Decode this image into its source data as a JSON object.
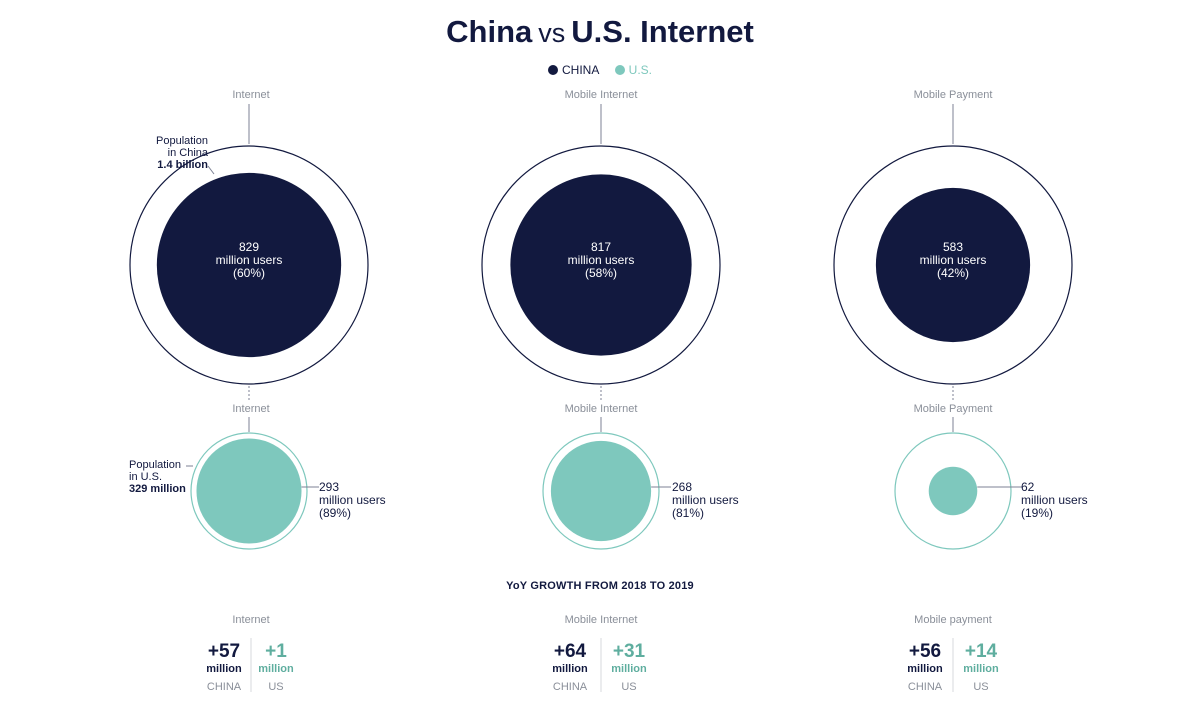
{
  "title": {
    "main_left": "China",
    "vs": "vs",
    "main_right": "U.S. Internet"
  },
  "legend": [
    {
      "label": "CHINA",
      "color": "#12193f"
    },
    {
      "label": "U.S.",
      "color": "#7ec8bd"
    }
  ],
  "colors": {
    "china": "#12193f",
    "us": "#7ec8bd",
    "ring_us": "#7ec8bd",
    "ring_china": "#12193f"
  },
  "chart_data": {
    "type": "bubble-comparison",
    "china": {
      "population_label": [
        "Population",
        "in China"
      ],
      "population_value": "1.4 billion",
      "categories": [
        {
          "name": "Internet",
          "value": "829",
          "unit": "million users",
          "pct": "(60%)",
          "share": 0.6
        },
        {
          "name": "Mobile Internet",
          "value": "817",
          "unit": "million users",
          "pct": "(58%)",
          "share": 0.58
        },
        {
          "name": "Mobile Payment",
          "value": "583",
          "unit": "million users",
          "pct": "(42%)",
          "share": 0.42
        }
      ]
    },
    "us": {
      "population_label": [
        "Population",
        "in U.S."
      ],
      "population_value": "329 million",
      "categories": [
        {
          "name": "Internet",
          "value": "293",
          "unit": "million users",
          "pct": "(89%)",
          "share": 0.89
        },
        {
          "name": "Mobile Internet",
          "value": "268",
          "unit": "million users",
          "pct": "(81%)",
          "share": 0.81
        },
        {
          "name": "Mobile Payment",
          "value": "62",
          "unit": "million users",
          "pct": "(19%)",
          "share": 0.19
        }
      ]
    },
    "growth": {
      "title": "YoY GROWTH FROM 2018 TO 2019",
      "categories": [
        {
          "name": "Internet",
          "china": "+57",
          "us": "+1"
        },
        {
          "name": "Mobile Internet",
          "china": "+64",
          "us": "+31"
        },
        {
          "name": "Mobile payment",
          "china": "+56",
          "us": "+14"
        }
      ],
      "unit": "million",
      "china_label": "CHINA",
      "us_label": "US"
    }
  }
}
